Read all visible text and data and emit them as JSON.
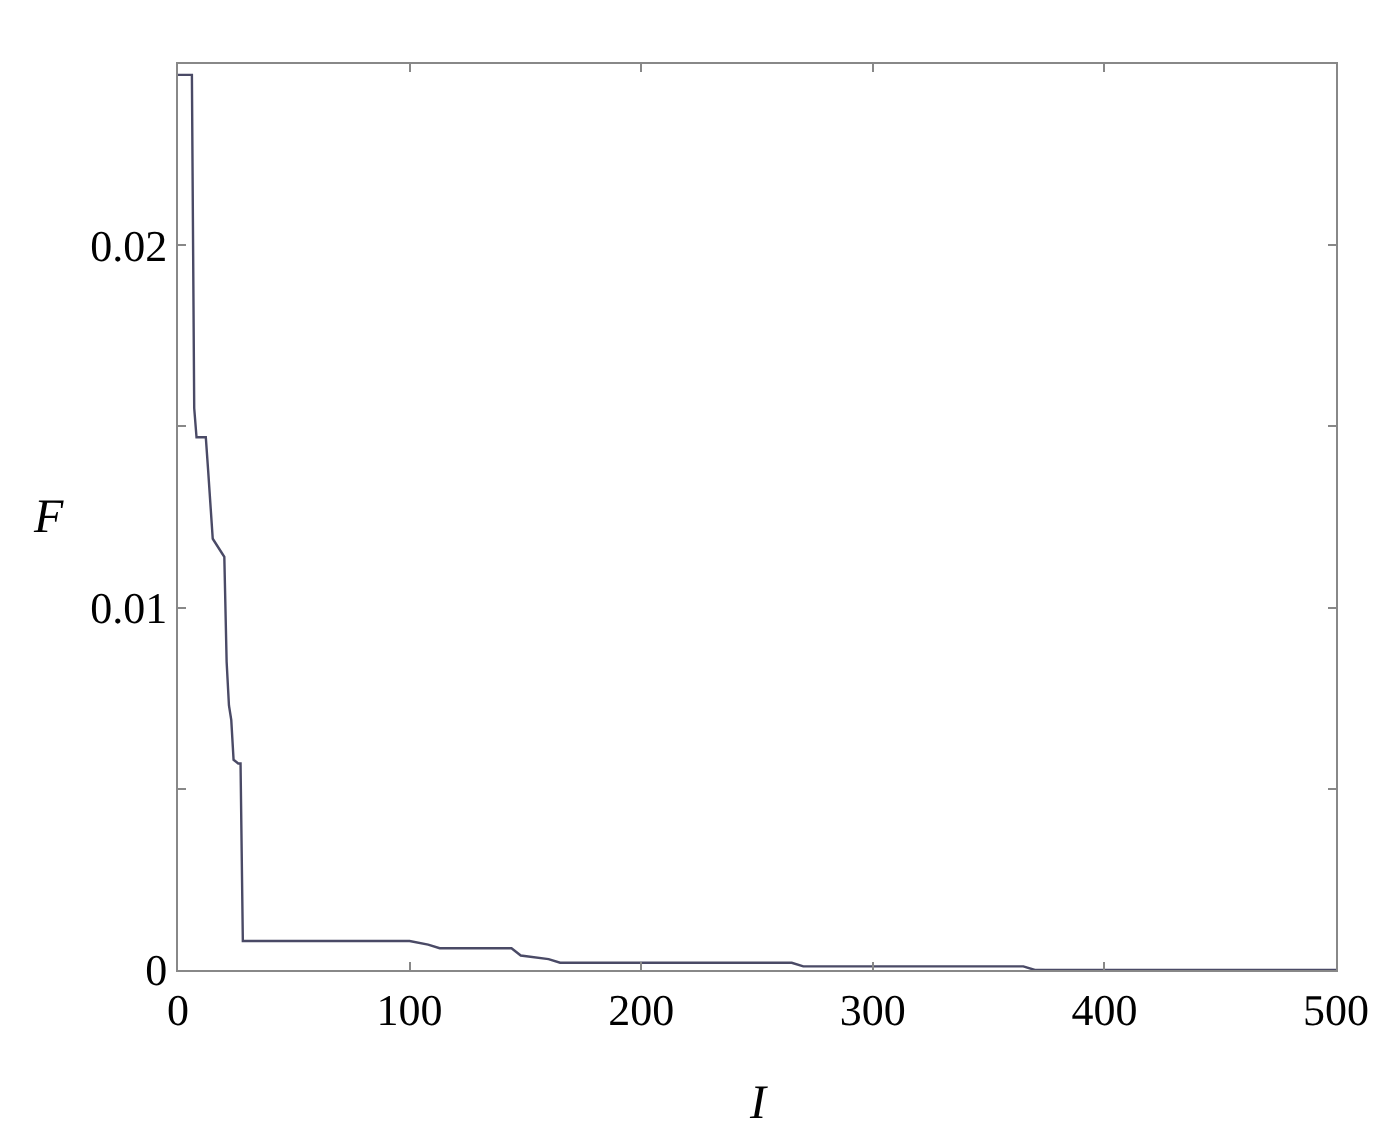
{
  "chart_data": {
    "type": "line",
    "xlabel": "I",
    "ylabel": "F",
    "x": [
      0,
      6,
      7,
      8,
      12,
      13,
      15,
      19,
      20,
      21,
      22,
      23,
      24,
      26,
      27,
      28,
      94,
      100,
      108,
      113,
      144,
      148,
      160,
      165,
      260,
      265,
      270,
      365,
      370,
      410,
      420,
      500
    ],
    "series": [
      {
        "color": "#4a4a66",
        "values": [
          0.0247,
          0.0247,
          0.0155,
          0.0147,
          0.0147,
          0.0138,
          0.0119,
          0.0115,
          0.0114,
          0.0085,
          0.0073,
          0.0069,
          0.0058,
          0.0057,
          0.0057,
          0.0008,
          0.0008,
          0.0008,
          0.0007,
          0.0006,
          0.0006,
          0.0004,
          0.0003,
          0.0002,
          0.0002,
          0.0002,
          0.0001,
          0.0001,
          0,
          0,
          0,
          0
        ]
      }
    ],
    "xlim": [
      0,
      500
    ],
    "xticks": [
      0,
      100,
      200,
      300,
      400,
      500
    ],
    "ylim": [
      0,
      0.025
    ],
    "yticks": [
      0,
      {
        "value": 0.005,
        "label": null
      },
      0.01,
      {
        "value": 0.015,
        "label": null
      },
      0.02
    ],
    "marker": "none",
    "line_style": "solid"
  }
}
